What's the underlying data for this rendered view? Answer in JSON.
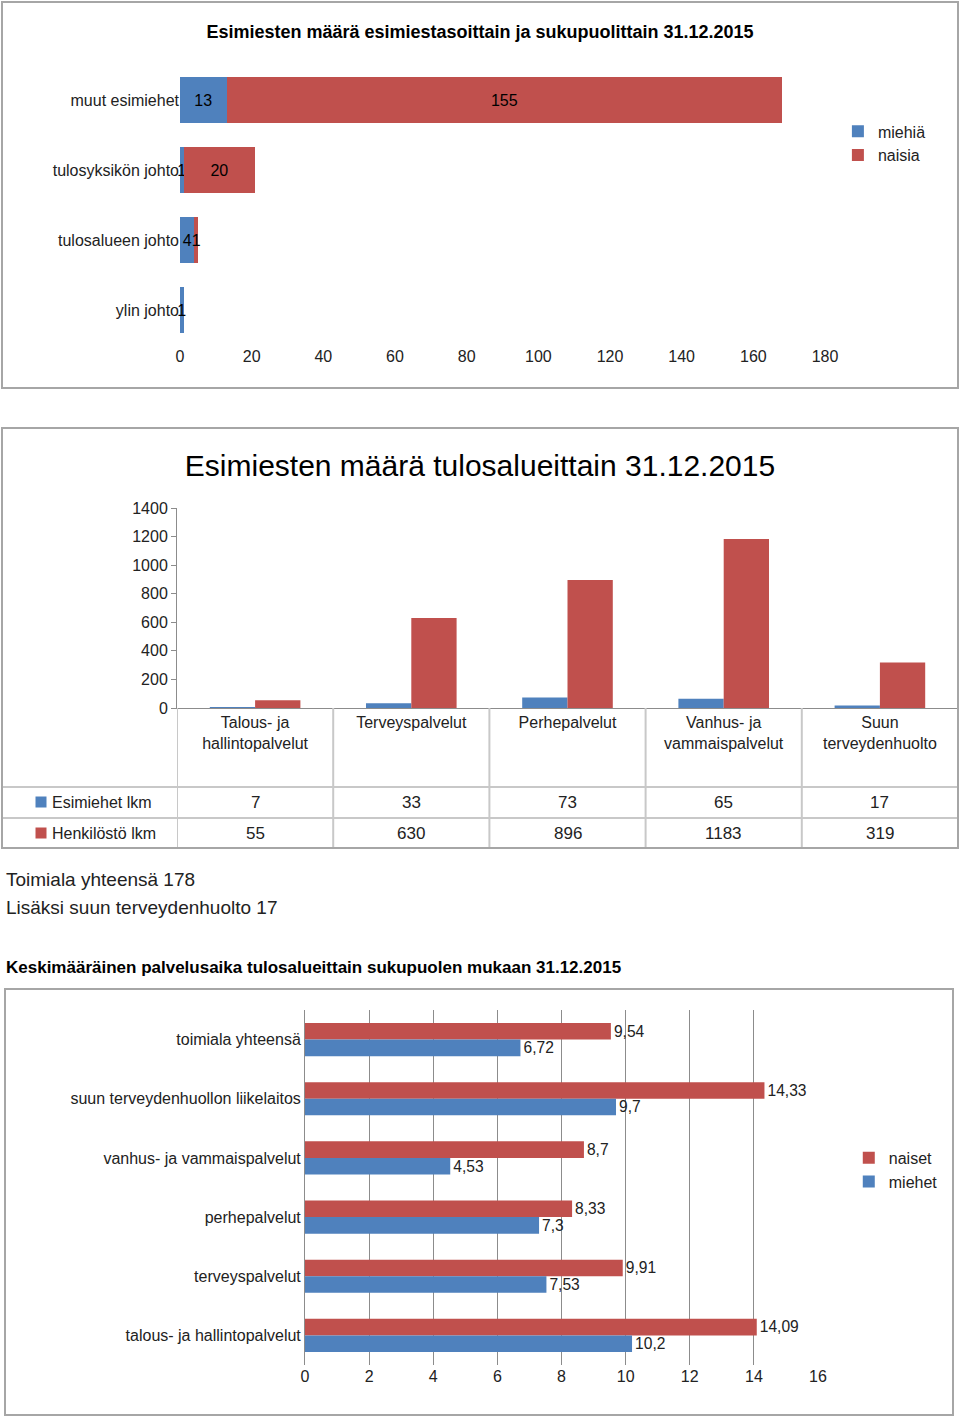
{
  "chart_data": [
    {
      "type": "bar",
      "title": "Esimiesten määrä esimiestasoittain ja sukupuolittain 31.12.2015",
      "orientation": "horizontal",
      "stacked": true,
      "categories": [
        "muut esimiehet",
        "tulosyksikön johto",
        "tulosalueen johto",
        "ylin johto"
      ],
      "series": [
        {
          "name": "miehiä",
          "color": "#4F81BD",
          "values": [
            13,
            1,
            4,
            1
          ]
        },
        {
          "name": "naisia",
          "color": "#C0504D",
          "values": [
            155,
            20,
            1,
            null
          ]
        }
      ],
      "xlim": [
        0,
        180
      ],
      "xticks": [
        0,
        20,
        40,
        60,
        80,
        100,
        120,
        140,
        160,
        180
      ],
      "grid": false,
      "legend": "right",
      "data_labels": true
    },
    {
      "type": "bar",
      "title": "Esimiesten määrä tulosalueittain 31.12.2015",
      "categories": [
        "Talous- ja hallintopalvelut",
        "Terveyspalvelut",
        "Perhepalvelut",
        "Vanhus- ja vammaispalvelut",
        "Suun terveydenhuolto"
      ],
      "series": [
        {
          "name": "Esimiehet lkm",
          "color": "#4F81BD",
          "values": [
            7,
            33,
            73,
            65,
            17
          ]
        },
        {
          "name": "Henkilöstö lkm",
          "color": "#C0504D",
          "values": [
            55,
            630,
            896,
            1183,
            319
          ]
        }
      ],
      "ylim": [
        0,
        1400
      ],
      "yticks": [
        0,
        200,
        400,
        600,
        800,
        1000,
        1200,
        1400
      ],
      "grid": false,
      "data_labels": true,
      "annotations": [
        "Toimiala yhteensä 178",
        "Lisäksi suun terveydenhuolto 17"
      ]
    },
    {
      "type": "bar",
      "title": "Keskimääräinen palvelusaika tulosalueittain sukupuolen mukaan 31.12.2015",
      "orientation": "horizontal",
      "categories": [
        "toimiala yhteensä",
        "suun terveydenhuollon liikelaitos",
        "vanhus- ja vammaispalvelut",
        "perhepalvelut",
        "terveyspalvelut",
        "talous- ja hallintopalvelut"
      ],
      "series": [
        {
          "name": "naiset",
          "color": "#C0504D",
          "values": [
            9.54,
            14.33,
            8.7,
            8.33,
            9.91,
            14.09
          ],
          "value_labels": [
            "9,54",
            "14,33",
            "8,7",
            "8,33",
            "9,91",
            "14,09"
          ]
        },
        {
          "name": "miehet",
          "color": "#4F81BD",
          "values": [
            6.72,
            9.7,
            4.53,
            7.3,
            7.53,
            10.2
          ],
          "value_labels": [
            "6,72",
            "9,7",
            "4,53",
            "7,3",
            "7,53",
            "10,2"
          ]
        }
      ],
      "xlim": [
        0,
        16
      ],
      "xticks": [
        0,
        2,
        4,
        6,
        8,
        10,
        12,
        14,
        16
      ],
      "grid": true,
      "legend": "right",
      "data_labels": true
    }
  ]
}
